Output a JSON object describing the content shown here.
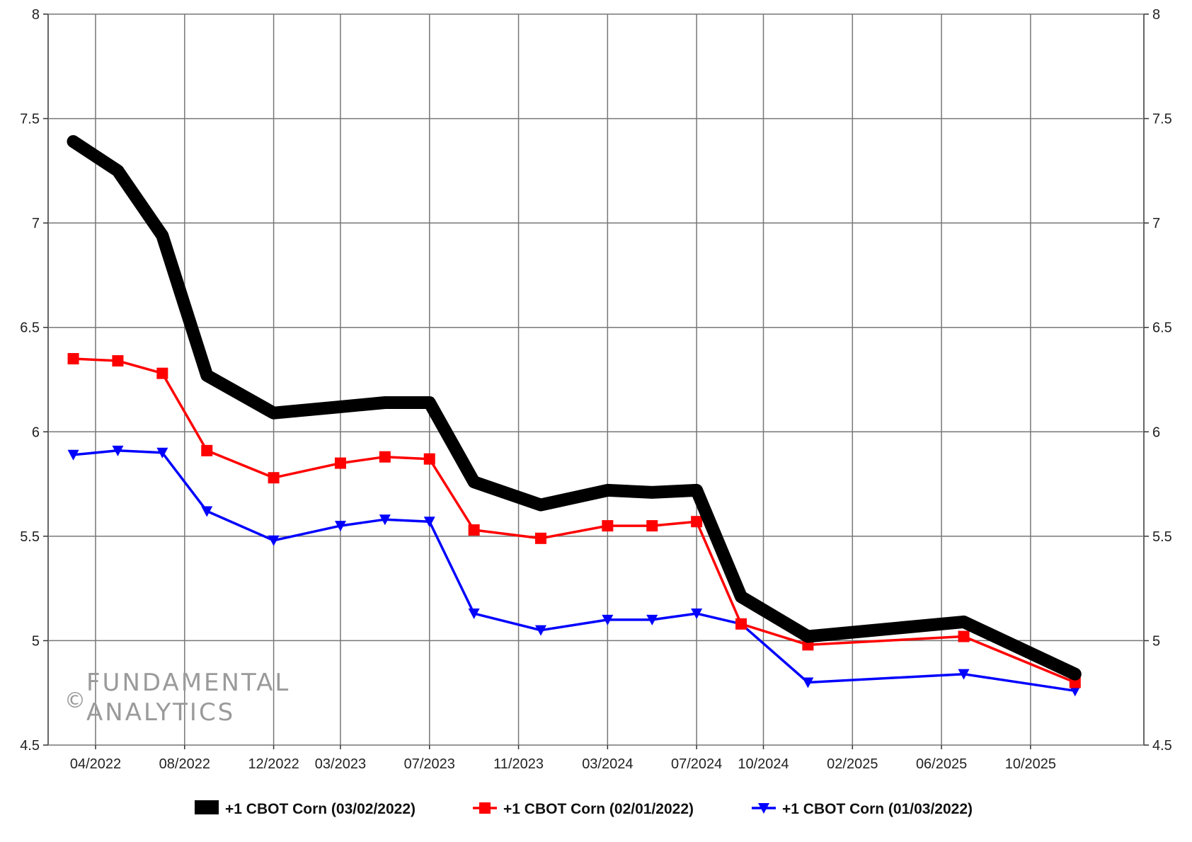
{
  "chart_data": {
    "type": "line",
    "title": "",
    "xlabel": "",
    "ylabel": "",
    "ylim": [
      4.5,
      8
    ],
    "y_ticks": [
      "4.5",
      "5",
      "5.5",
      "6",
      "6.5",
      "7",
      "7.5",
      "8"
    ],
    "y_axis_right": true,
    "grid": true,
    "legend_position": "bottom",
    "x_tick_labels": [
      "04/2022",
      "08/2022",
      "12/2022",
      "03/2023",
      "07/2023",
      "11/2023",
      "03/2024",
      "07/2024",
      "10/2024",
      "02/2025",
      "06/2025",
      "10/2025"
    ],
    "x": [
      "03/2022",
      "05/2022",
      "07/2022",
      "09/2022",
      "12/2022",
      "03/2023",
      "05/2023",
      "07/2023",
      "09/2023",
      "12/2023",
      "03/2024",
      "05/2024",
      "07/2024",
      "09/2024",
      "12/2024",
      "07/2025",
      "12/2025"
    ],
    "series": [
      {
        "name": "+1 CBOT Corn (03/02/2022)",
        "color": "#000000",
        "marker": "none",
        "values": [
          7.39,
          7.25,
          6.94,
          6.27,
          6.09,
          6.12,
          6.14,
          6.14,
          5.76,
          5.65,
          5.72,
          5.71,
          5.72,
          5.21,
          5.02,
          5.09,
          4.84
        ]
      },
      {
        "name": "+1 CBOT Corn (02/01/2022)",
        "color": "#ff0000",
        "marker": "square",
        "values": [
          6.35,
          6.34,
          6.28,
          5.91,
          5.78,
          5.85,
          5.88,
          5.87,
          5.53,
          5.49,
          5.55,
          5.55,
          5.57,
          5.08,
          4.98,
          5.02,
          4.8
        ]
      },
      {
        "name": "+1 CBOT Corn (01/03/2022)",
        "color": "#0000ff",
        "marker": "triangle-down",
        "values": [
          5.89,
          5.91,
          5.9,
          5.62,
          5.48,
          5.55,
          5.58,
          5.57,
          5.13,
          5.05,
          5.1,
          5.1,
          5.13,
          5.08,
          4.8,
          4.84,
          4.76
        ]
      }
    ]
  },
  "watermark": {
    "symbol": "©",
    "line1": "FUNDAMENTAL",
    "line2": "ANALYTICS"
  }
}
